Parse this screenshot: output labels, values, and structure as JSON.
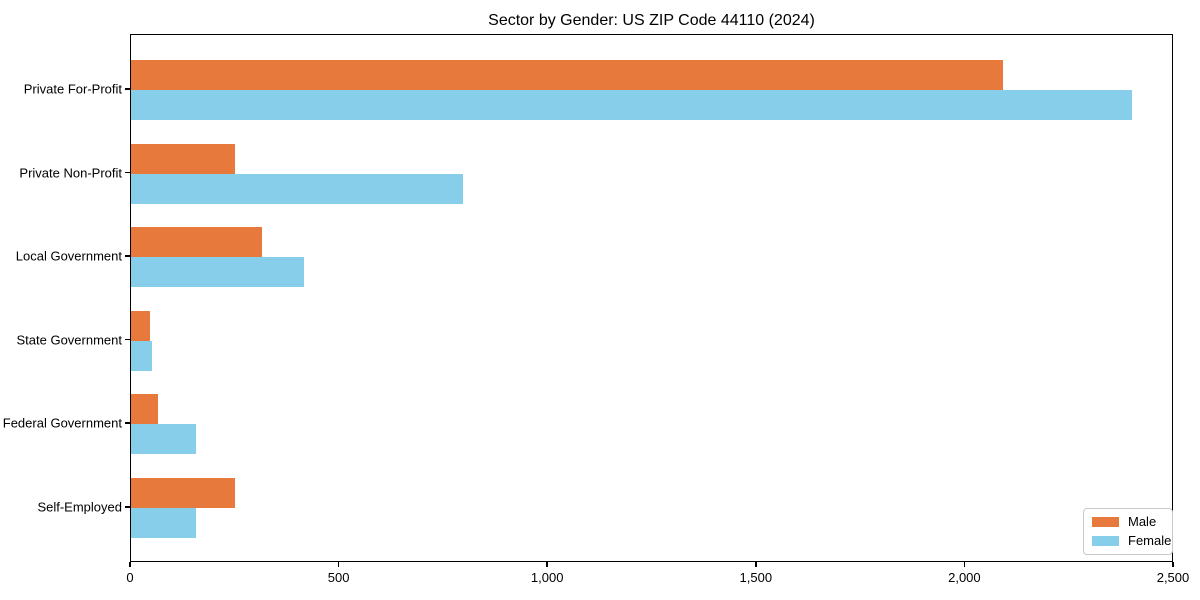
{
  "chart_data": {
    "type": "bar",
    "orientation": "horizontal",
    "title": "Sector by Gender: US ZIP Code 44110 (2024)",
    "categories": [
      "Private For-Profit",
      "Private Non-Profit",
      "Local Government",
      "State Government",
      "Federal Government",
      "Self-Employed"
    ],
    "series": [
      {
        "name": "Male",
        "color": "#E8793C",
        "values": [
          2090,
          250,
          315,
          45,
          65,
          250
        ]
      },
      {
        "name": "Female",
        "color": "#87CEEB",
        "values": [
          2400,
          795,
          415,
          50,
          155,
          155
        ]
      }
    ],
    "xlabel": "",
    "ylabel": "",
    "xlim": [
      0,
      2500
    ],
    "xticks": [
      0,
      500,
      1000,
      1500,
      2000,
      2500
    ],
    "xtick_labels": [
      "0",
      "500",
      "1,000",
      "1,500",
      "2,000",
      "2,500"
    ],
    "grid": false,
    "legend": {
      "position": "lower right",
      "entries": [
        "Male",
        "Female"
      ]
    },
    "plot_border_color": "#000000",
    "background_color": "#ffffff"
  }
}
